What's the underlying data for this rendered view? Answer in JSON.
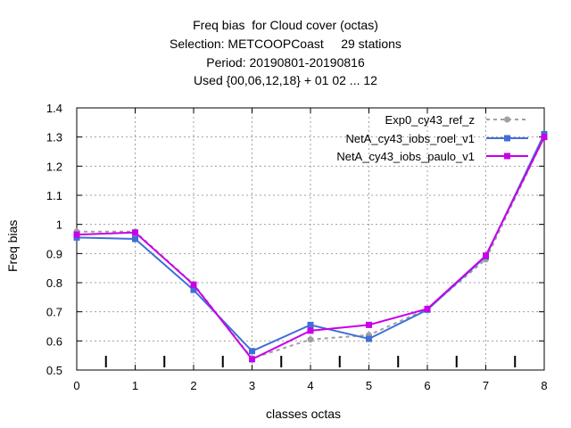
{
  "chart_data": {
    "type": "line",
    "title_lines": [
      "Freq bias  for Cloud cover (octas)",
      "Selection: METCOOPCoast     29 stations",
      "Period: 20190801-20190816",
      "Used {00,06,12,18} + 01 02 ... 12"
    ],
    "xlabel": "classes octas",
    "ylabel": "Freq bias",
    "xlim": [
      0,
      8
    ],
    "ylim": [
      0.5,
      1.4
    ],
    "x_ticks": [
      0,
      1,
      2,
      3,
      4,
      5,
      6,
      7,
      8
    ],
    "x_tick_labels": [
      "0",
      "1",
      "2",
      "3",
      "4",
      "5",
      "6",
      "7",
      "8"
    ],
    "y_ticks": [
      0.5,
      0.6,
      0.7,
      0.8,
      0.9,
      1.0,
      1.1,
      1.2,
      1.3,
      1.4
    ],
    "y_tick_labels": [
      "0.5",
      "0.6",
      "0.7",
      "0.8",
      "0.9",
      "1",
      "1.1",
      "1.2",
      "1.3",
      "1.4"
    ],
    "grid": true,
    "legend_position": "top-right",
    "minor_markers_x": [
      0.5,
      1.5,
      2.5,
      3.5,
      4.5,
      5.5,
      6.5,
      7.5
    ],
    "x": [
      0,
      1,
      2,
      3,
      4,
      5,
      6,
      7,
      8
    ],
    "series": [
      {
        "name": "Exp0_cy43_ref_z",
        "values": [
          0.975,
          0.975,
          0.795,
          0.54,
          0.605,
          0.62,
          0.71,
          0.88,
          1.3
        ],
        "color": "#a0a0a0",
        "style": "dashed"
      },
      {
        "name": "NetA_cy43_iobs_roel_v1",
        "values": [
          0.955,
          0.95,
          0.775,
          0.565,
          0.655,
          0.607,
          0.707,
          0.89,
          1.31
        ],
        "color": "#3f6fd6",
        "style": "solid"
      },
      {
        "name": "NetA_cy43_iobs_paulo_v1",
        "values": [
          0.965,
          0.972,
          0.793,
          0.537,
          0.635,
          0.655,
          0.71,
          0.893,
          1.3
        ],
        "color": "#c800e8",
        "style": "solid"
      }
    ]
  }
}
